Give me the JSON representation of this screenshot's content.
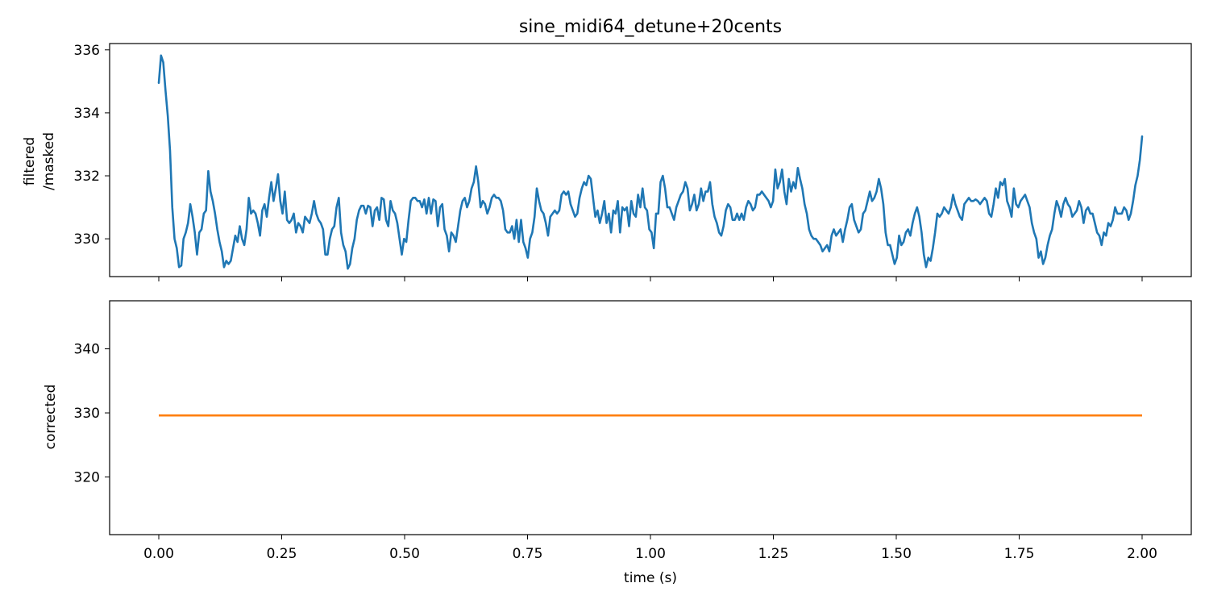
{
  "chart_data": [
    {
      "type": "line",
      "title": "sine_midi64_detune+20cents",
      "ylabel": [
        "filtered",
        "/masked"
      ],
      "xlim": [
        -0.1,
        2.1
      ],
      "ylim": [
        328.8,
        336.2
      ],
      "xticks": [
        0.0,
        0.25,
        0.5,
        0.75,
        1.0,
        1.25,
        1.5,
        1.75,
        2.0
      ],
      "xticklabels_visible": false,
      "yticks": [
        330,
        332,
        334,
        336
      ],
      "yticklabels": [
        "330",
        "332",
        "334",
        "336"
      ],
      "series": [
        {
          "color": "#1f77b4",
          "x_start": 0.0,
          "x_end": 2.0,
          "values": [
            334.95,
            335.82,
            335.6,
            334.7,
            333.9,
            332.8,
            331.0,
            330.0,
            329.7,
            329.1,
            329.15,
            330.0,
            330.2,
            330.5,
            331.1,
            330.7,
            330.2,
            329.5,
            330.2,
            330.3,
            330.8,
            330.9,
            332.15,
            331.5,
            331.2,
            330.8,
            330.3,
            329.9,
            329.6,
            329.1,
            329.3,
            329.2,
            329.3,
            329.7,
            330.1,
            329.9,
            330.4,
            330.0,
            329.8,
            330.3,
            331.3,
            330.8,
            330.9,
            330.8,
            330.5,
            330.1,
            330.9,
            331.1,
            330.7,
            331.3,
            331.8,
            331.2,
            331.6,
            332.05,
            331.2,
            330.8,
            331.5,
            330.6,
            330.5,
            330.6,
            330.8,
            330.2,
            330.5,
            330.4,
            330.2,
            330.7,
            330.6,
            330.5,
            330.8,
            331.2,
            330.8,
            330.6,
            330.5,
            330.3,
            329.5,
            329.5,
            330.0,
            330.3,
            330.4,
            331.0,
            331.3,
            330.2,
            329.8,
            329.6,
            329.05,
            329.2,
            329.7,
            330.0,
            330.6,
            330.9,
            331.05,
            331.05,
            330.8,
            331.05,
            331.0,
            330.4,
            330.9,
            331.0,
            330.6,
            331.3,
            331.25,
            330.6,
            330.4,
            331.2,
            330.9,
            330.8,
            330.5,
            330.0,
            329.5,
            330.0,
            329.9,
            330.6,
            331.2,
            331.3,
            331.3,
            331.2,
            331.2,
            331.0,
            331.25,
            330.8,
            331.3,
            330.8,
            331.25,
            331.2,
            330.4,
            331.0,
            331.1,
            330.3,
            330.1,
            329.6,
            330.2,
            330.1,
            329.9,
            330.4,
            330.9,
            331.2,
            331.3,
            331.0,
            331.2,
            331.6,
            331.8,
            332.3,
            331.8,
            331.0,
            331.2,
            331.1,
            330.8,
            331.0,
            331.3,
            331.4,
            331.3,
            331.3,
            331.2,
            330.9,
            330.3,
            330.2,
            330.2,
            330.4,
            330.0,
            330.6,
            329.9,
            330.6,
            329.9,
            329.7,
            329.4,
            330.0,
            330.2,
            330.7,
            331.6,
            331.2,
            330.9,
            330.8,
            330.5,
            330.1,
            330.7,
            330.8,
            330.9,
            330.8,
            330.9,
            331.4,
            331.5,
            331.4,
            331.5,
            331.1,
            330.9,
            330.7,
            330.8,
            331.3,
            331.6,
            331.8,
            331.7,
            332.0,
            331.9,
            331.3,
            330.7,
            330.9,
            330.5,
            330.8,
            331.2,
            330.5,
            330.8,
            330.2,
            330.9,
            330.8,
            331.2,
            330.2,
            331.0,
            330.9,
            331.0,
            330.4,
            331.2,
            330.8,
            330.7,
            331.4,
            331.0,
            331.6,
            331.0,
            330.9,
            330.3,
            330.2,
            329.7,
            330.8,
            330.8,
            331.8,
            332.0,
            331.6,
            331.0,
            331.0,
            330.8,
            330.6,
            331.0,
            331.2,
            331.4,
            331.5,
            331.8,
            331.6,
            330.9,
            331.1,
            331.4,
            330.9,
            331.1,
            331.6,
            331.2,
            331.5,
            331.5,
            331.8,
            331.1,
            330.7,
            330.5,
            330.2,
            330.1,
            330.4,
            330.9,
            331.1,
            331.0,
            330.6,
            330.6,
            330.8,
            330.6,
            330.8,
            330.6,
            331.0,
            331.2,
            331.1,
            330.9,
            331.0,
            331.4,
            331.4,
            331.5,
            331.4,
            331.3,
            331.2,
            331.0,
            331.2,
            332.2,
            331.6,
            331.8,
            332.2,
            331.5,
            331.1,
            331.9,
            331.5,
            331.8,
            331.6,
            332.25,
            331.9,
            331.6,
            331.1,
            330.8,
            330.3,
            330.1,
            330.0,
            330.0,
            329.9,
            329.8,
            329.6,
            329.7,
            329.8,
            329.6,
            330.1,
            330.3,
            330.1,
            330.2,
            330.3,
            329.9,
            330.3,
            330.6,
            331.0,
            331.1,
            330.6,
            330.4,
            330.2,
            330.3,
            330.8,
            330.9,
            331.2,
            331.5,
            331.2,
            331.3,
            331.5,
            331.9,
            331.6,
            331.1,
            330.2,
            329.8,
            329.8,
            329.5,
            329.2,
            329.4,
            330.1,
            329.8,
            329.9,
            330.2,
            330.3,
            330.1,
            330.5,
            330.8,
            331.0,
            330.7,
            330.2,
            329.5,
            329.1,
            329.4,
            329.3,
            329.7,
            330.2,
            330.8,
            330.7,
            330.8,
            331.0,
            330.9,
            330.8,
            331.0,
            331.4,
            331.1,
            330.9,
            330.7,
            330.6,
            331.1,
            331.2,
            331.3,
            331.2,
            331.2,
            331.25,
            331.2,
            331.1,
            331.2,
            331.3,
            331.2,
            330.8,
            330.7,
            331.1,
            331.6,
            331.3,
            331.8,
            331.7,
            331.9,
            331.2,
            331.0,
            330.7,
            331.6,
            331.1,
            331.0,
            331.2,
            331.3,
            331.4,
            331.2,
            331.0,
            330.5,
            330.2,
            330.0,
            329.4,
            329.6,
            329.2,
            329.4,
            329.8,
            330.1,
            330.3,
            330.8,
            331.2,
            331.0,
            330.7,
            331.1,
            331.3,
            331.1,
            331.0,
            330.7,
            330.8,
            330.9,
            331.2,
            331.0,
            330.5,
            330.9,
            331.0,
            330.8,
            330.8,
            330.5,
            330.2,
            330.1,
            329.8,
            330.2,
            330.1,
            330.5,
            330.4,
            330.6,
            331.0,
            330.8,
            330.8,
            330.8,
            331.0,
            330.9,
            330.6,
            330.8,
            331.2,
            331.7,
            332.0,
            332.5,
            333.25
          ]
        }
      ]
    },
    {
      "type": "line",
      "ylabel": "corrected",
      "xlabel": "time (s)",
      "xlim": [
        -0.1,
        2.1
      ],
      "ylim": [
        311.0,
        347.5
      ],
      "xticks": [
        0.0,
        0.25,
        0.5,
        0.75,
        1.0,
        1.25,
        1.5,
        1.75,
        2.0
      ],
      "xticklabels": [
        "0.00",
        "0.25",
        "0.50",
        "0.75",
        "1.00",
        "1.25",
        "1.50",
        "1.75",
        "2.00"
      ],
      "yticks": [
        320,
        330,
        340
      ],
      "yticklabels": [
        "320",
        "330",
        "340"
      ],
      "series": [
        {
          "color": "#ff7f0e",
          "x": [
            0.0,
            2.0
          ],
          "y": [
            329.6,
            329.6
          ]
        }
      ]
    }
  ]
}
